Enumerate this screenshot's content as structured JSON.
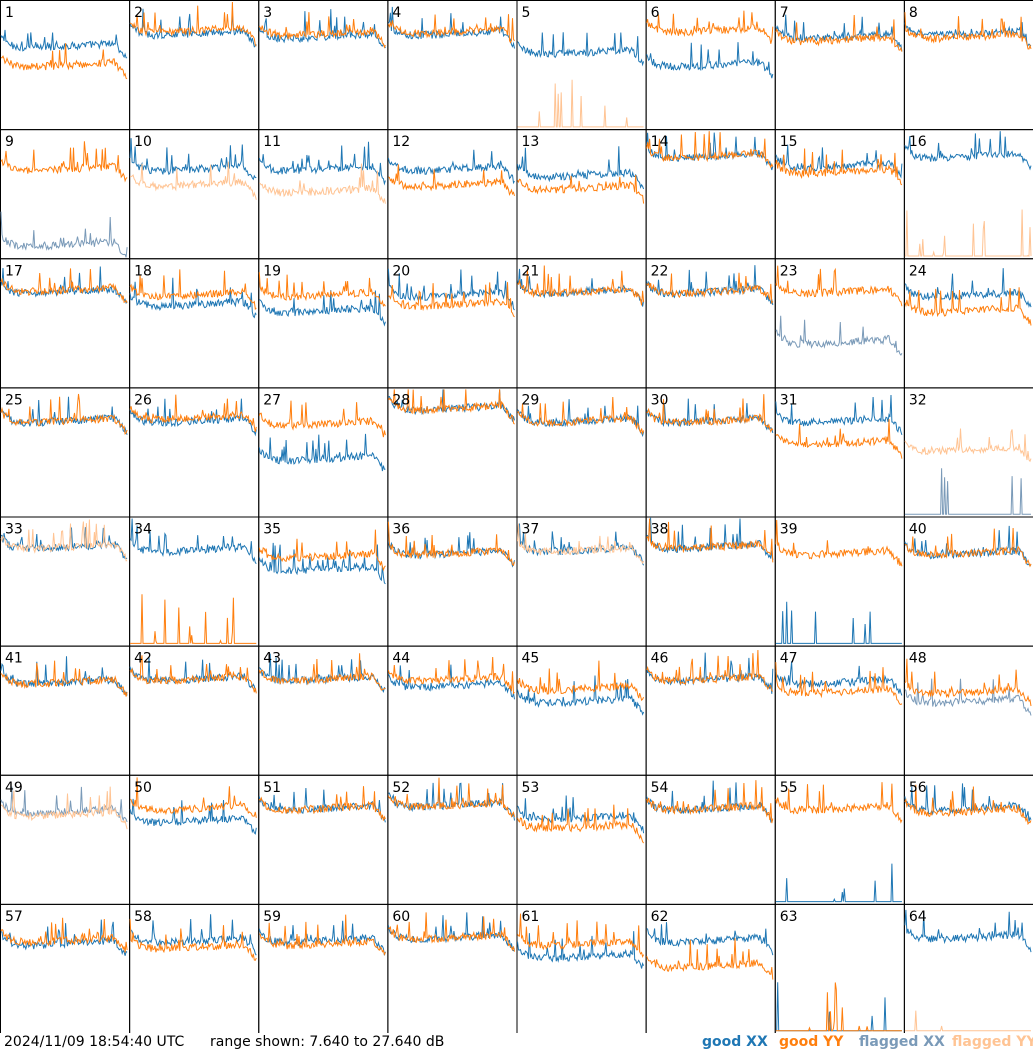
{
  "footer": {
    "timestamp": "2024/11/09 18:54:40 UTC",
    "range": "range shown: 7.640 to 27.640 dB"
  },
  "legend": [
    {
      "label": "good XX",
      "color": "#1f77b4"
    },
    {
      "label": "good YY",
      "color": "#ff7f0e"
    },
    {
      "label": "flagged XX",
      "color": "#7a9ab8"
    },
    {
      "label": "flagged YY",
      "color": "#ffc494"
    }
  ],
  "chart_data": {
    "type": "line",
    "ylim": [
      7.64,
      27.64
    ],
    "units": "dB",
    "grid_rows": 8,
    "grid_cols": 8,
    "panels": [
      {
        "label": "1",
        "xx": "good",
        "yy": "good",
        "xx_base": 20.0,
        "yy_base": 17.0
      },
      {
        "label": "2",
        "xx": "good",
        "yy": "good",
        "xx_base": 22.0,
        "yy_base": 22.5
      },
      {
        "label": "3",
        "xx": "good",
        "yy": "good",
        "xx_base": 21.5,
        "yy_base": 22.0
      },
      {
        "label": "4",
        "xx": "good",
        "yy": "good",
        "xx_base": 22.0,
        "yy_base": 22.3
      },
      {
        "label": "5",
        "xx": "good",
        "yy": "flagged",
        "xx_base": 19.0,
        "yy_base": 7.9
      },
      {
        "label": "6",
        "xx": "good",
        "yy": "good",
        "xx_base": 17.0,
        "yy_base": 22.5
      },
      {
        "label": "7",
        "xx": "good",
        "yy": "good",
        "xx_base": 21.5,
        "yy_base": 21.0
      },
      {
        "label": "8",
        "xx": "good",
        "yy": "good",
        "xx_base": 22.0,
        "yy_base": 21.5
      },
      {
        "label": "9",
        "xx": "flagged",
        "yy": "good",
        "xx_base": 9.0,
        "yy_base": 21.0
      },
      {
        "label": "10",
        "xx": "good",
        "yy": "flagged",
        "xx_base": 21.0,
        "yy_base": 18.5
      },
      {
        "label": "11",
        "xx": "good",
        "yy": "flagged",
        "xx_base": 21.0,
        "yy_base": 17.5
      },
      {
        "label": "12",
        "xx": "good",
        "yy": "good",
        "xx_base": 21.0,
        "yy_base": 18.5
      },
      {
        "label": "13",
        "xx": "good",
        "yy": "good",
        "xx_base": 20.0,
        "yy_base": 18.0
      },
      {
        "label": "14",
        "xx": "good",
        "yy": "good",
        "xx_base": 23.0,
        "yy_base": 23.0
      },
      {
        "label": "15",
        "xx": "good",
        "yy": "good",
        "xx_base": 21.5,
        "yy_base": 20.5
      },
      {
        "label": "16",
        "xx": "good",
        "yy": "flagged",
        "xx_base": 23.0,
        "yy_base": 7.9
      },
      {
        "label": "17",
        "xx": "good",
        "yy": "good",
        "xx_base": 22.0,
        "yy_base": 22.3
      },
      {
        "label": "18",
        "xx": "good",
        "yy": "good",
        "xx_base": 20.0,
        "yy_base": 21.5
      },
      {
        "label": "19",
        "xx": "good",
        "yy": "good",
        "xx_base": 19.0,
        "yy_base": 21.5
      },
      {
        "label": "20",
        "xx": "good",
        "yy": "good",
        "xx_base": 21.5,
        "yy_base": 20.0
      },
      {
        "label": "21",
        "xx": "good",
        "yy": "good",
        "xx_base": 22.0,
        "yy_base": 22.0
      },
      {
        "label": "22",
        "xx": "good",
        "yy": "good",
        "xx_base": 22.0,
        "yy_base": 22.0
      },
      {
        "label": "23",
        "xx": "flagged",
        "yy": "good",
        "xx_base": 14.0,
        "yy_base": 22.0
      },
      {
        "label": "24",
        "xx": "good",
        "yy": "good",
        "xx_base": 21.5,
        "yy_base": 19.0
      },
      {
        "label": "25",
        "xx": "good",
        "yy": "good",
        "xx_base": 22.0,
        "yy_base": 22.0
      },
      {
        "label": "26",
        "xx": "good",
        "yy": "good",
        "xx_base": 22.0,
        "yy_base": 22.5
      },
      {
        "label": "27",
        "xx": "good",
        "yy": "good",
        "xx_base": 16.0,
        "yy_base": 21.5
      },
      {
        "label": "28",
        "xx": "good",
        "yy": "good",
        "xx_base": 24.0,
        "yy_base": 24.0
      },
      {
        "label": "29",
        "xx": "good",
        "yy": "good",
        "xx_base": 22.0,
        "yy_base": 22.0
      },
      {
        "label": "30",
        "xx": "good",
        "yy": "good",
        "xx_base": 22.0,
        "yy_base": 22.0
      },
      {
        "label": "31",
        "xx": "good",
        "yy": "good",
        "xx_base": 22.0,
        "yy_base": 18.5
      },
      {
        "label": "32",
        "xx": "flagged",
        "yy": "flagged",
        "xx_base": 7.9,
        "yy_base": 17.5
      },
      {
        "label": "33",
        "xx": "good",
        "yy": "flagged",
        "xx_base": 22.5,
        "yy_base": 22.5
      },
      {
        "label": "34",
        "xx": "good",
        "yy": "good",
        "xx_base": 22.0,
        "yy_base": 8.5
      },
      {
        "label": "35",
        "xx": "good",
        "yy": "good",
        "xx_base": 19.0,
        "yy_base": 21.0
      },
      {
        "label": "36",
        "xx": "good",
        "yy": "good",
        "xx_base": 21.5,
        "yy_base": 21.5
      },
      {
        "label": "37",
        "xx": "good",
        "yy": "flagged",
        "xx_base": 22.0,
        "yy_base": 22.0
      },
      {
        "label": "38",
        "xx": "good",
        "yy": "good",
        "xx_base": 22.5,
        "yy_base": 22.5
      },
      {
        "label": "39",
        "xx": "good",
        "yy": "good",
        "xx_base": 7.9,
        "yy_base": 21.5
      },
      {
        "label": "40",
        "xx": "good",
        "yy": "good",
        "xx_base": 21.5,
        "yy_base": 21.5
      },
      {
        "label": "41",
        "xx": "good",
        "yy": "good",
        "xx_base": 21.5,
        "yy_base": 21.5
      },
      {
        "label": "42",
        "xx": "good",
        "yy": "good",
        "xx_base": 22.0,
        "yy_base": 22.0
      },
      {
        "label": "43",
        "xx": "good",
        "yy": "good",
        "xx_base": 22.0,
        "yy_base": 22.0
      },
      {
        "label": "44",
        "xx": "good",
        "yy": "good",
        "xx_base": 21.0,
        "yy_base": 22.0
      },
      {
        "label": "45",
        "xx": "good",
        "yy": "good",
        "xx_base": 18.5,
        "yy_base": 20.5
      },
      {
        "label": "46",
        "xx": "good",
        "yy": "good",
        "xx_base": 22.0,
        "yy_base": 22.0
      },
      {
        "label": "47",
        "xx": "good",
        "yy": "good",
        "xx_base": 21.5,
        "yy_base": 20.0
      },
      {
        "label": "48",
        "xx": "flagged",
        "yy": "good",
        "xx_base": 18.5,
        "yy_base": 20.0
      },
      {
        "label": "49",
        "xx": "flagged",
        "yy": "flagged",
        "xx_base": 21.5,
        "yy_base": 21.0
      },
      {
        "label": "50",
        "xx": "good",
        "yy": "good",
        "xx_base": 20.0,
        "yy_base": 22.0
      },
      {
        "label": "51",
        "xx": "good",
        "yy": "good",
        "xx_base": 22.0,
        "yy_base": 22.0
      },
      {
        "label": "52",
        "xx": "good",
        "yy": "good",
        "xx_base": 22.5,
        "yy_base": 22.5
      },
      {
        "label": "53",
        "xx": "good",
        "yy": "good",
        "xx_base": 20.5,
        "yy_base": 19.0
      },
      {
        "label": "54",
        "xx": "good",
        "yy": "good",
        "xx_base": 22.0,
        "yy_base": 22.0
      },
      {
        "label": "55",
        "xx": "good",
        "yy": "good",
        "xx_base": 8.5,
        "yy_base": 22.0
      },
      {
        "label": "56",
        "xx": "good",
        "yy": "good",
        "xx_base": 22.0,
        "yy_base": 21.5
      },
      {
        "label": "57",
        "xx": "good",
        "yy": "good",
        "xx_base": 21.0,
        "yy_base": 21.5
      },
      {
        "label": "58",
        "xx": "good",
        "yy": "good",
        "xx_base": 21.5,
        "yy_base": 20.5
      },
      {
        "label": "59",
        "xx": "good",
        "yy": "good",
        "xx_base": 21.5,
        "yy_base": 21.0
      },
      {
        "label": "60",
        "xx": "good",
        "yy": "good",
        "xx_base": 22.0,
        "yy_base": 22.0
      },
      {
        "label": "61",
        "xx": "good",
        "yy": "good",
        "xx_base": 19.0,
        "yy_base": 21.0
      },
      {
        "label": "62",
        "xx": "good",
        "yy": "good",
        "xx_base": 21.5,
        "yy_base": 17.5
      },
      {
        "label": "63",
        "xx": "good",
        "yy": "good",
        "xx_base": 8.5,
        "yy_base": 8.5
      },
      {
        "label": "64",
        "xx": "good",
        "yy": "flagged",
        "xx_base": 22.0,
        "yy_base": 7.9
      }
    ]
  }
}
